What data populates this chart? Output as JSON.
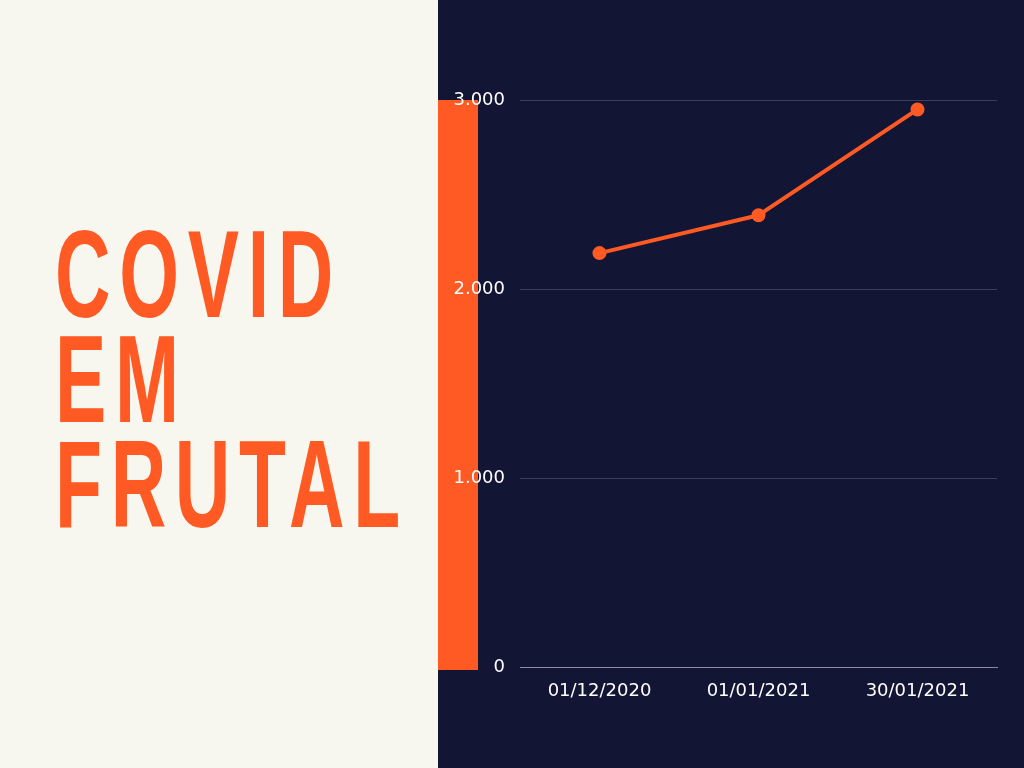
{
  "chart_data": {
    "type": "line",
    "title": "COVID EM FRUTAL",
    "categories": [
      "01/12/2020",
      "01/01/2021",
      "30/01/2021"
    ],
    "series": [
      {
        "color": "#ff5a23",
        "values": [
          2190,
          2390,
          2950
        ]
      }
    ],
    "ylim": [
      0,
      3000
    ],
    "yticks": [
      0,
      {
        "value": 1000,
        "label": "1.000"
      },
      {
        "value": 2000,
        "label": "2.000"
      },
      {
        "value": 3000,
        "label": "3.000"
      }
    ],
    "grid": "y",
    "legend": false,
    "marker": "circle",
    "line_style": "solid"
  }
}
